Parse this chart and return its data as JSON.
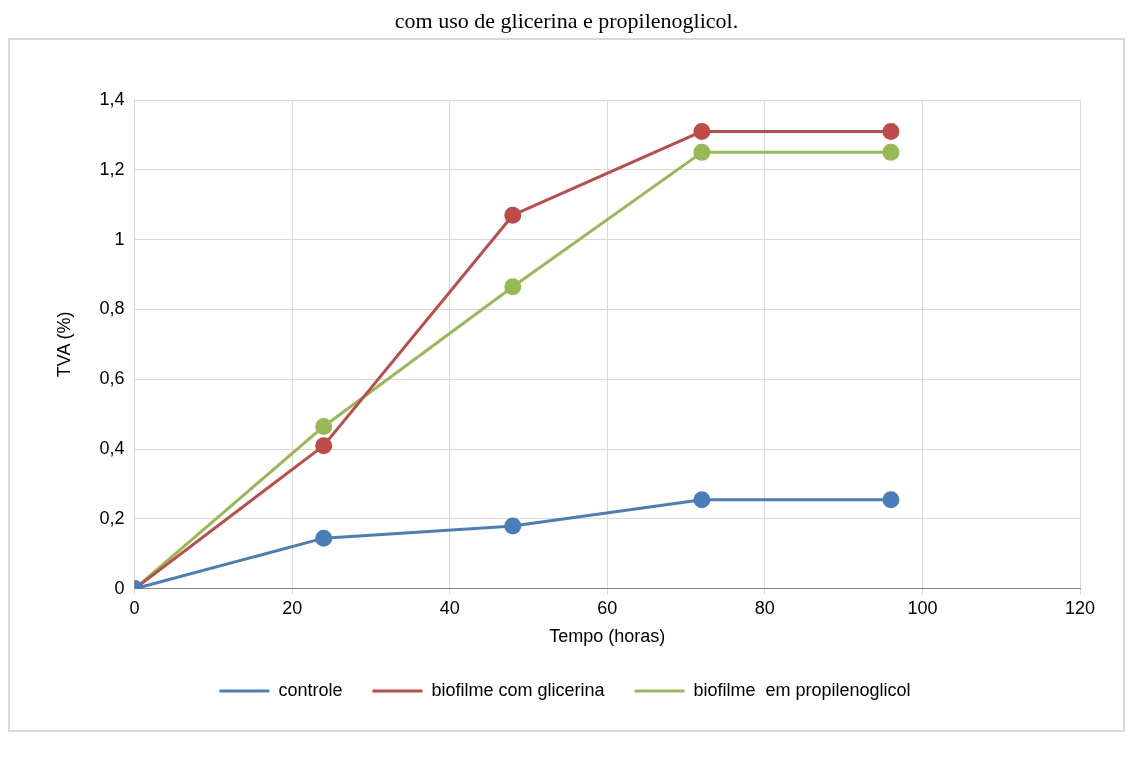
{
  "chart_data": {
    "type": "line",
    "title": "com uso de glicerina e propilenoglicol.",
    "xlabel": "Tempo (horas)",
    "ylabel": "TVA (%)",
    "x": [
      0,
      24,
      48,
      72,
      96
    ],
    "series": [
      {
        "name": "controle",
        "color": "#4a7ebb",
        "values": [
          0,
          0.145,
          0.18,
          0.255,
          0.255
        ]
      },
      {
        "name": "biofilme com glicerina",
        "color": "#be4b48",
        "values": [
          0,
          0.41,
          1.07,
          1.31,
          1.31
        ]
      },
      {
        "name": "biofilme  em propilenoglicol",
        "color": "#98b954",
        "values": [
          0,
          0.465,
          0.865,
          1.25,
          1.25
        ]
      }
    ],
    "xlim": [
      0,
      120
    ],
    "xticks": [
      0,
      20,
      40,
      60,
      80,
      100,
      120
    ],
    "ylim": [
      0,
      1.4
    ],
    "yticks": [
      0,
      {
        "value": 0.2,
        "label": "0,2"
      },
      {
        "value": 0.4,
        "label": "0,4"
      },
      {
        "value": 0.6,
        "label": "0,6"
      },
      {
        "value": 0.8,
        "label": "0,8"
      },
      1,
      {
        "value": 1.2,
        "label": "1,2"
      },
      {
        "value": 1.4,
        "label": "1,4"
      }
    ],
    "grid": true,
    "legend": "bottom",
    "marker": "circle",
    "line_style": "solid"
  }
}
